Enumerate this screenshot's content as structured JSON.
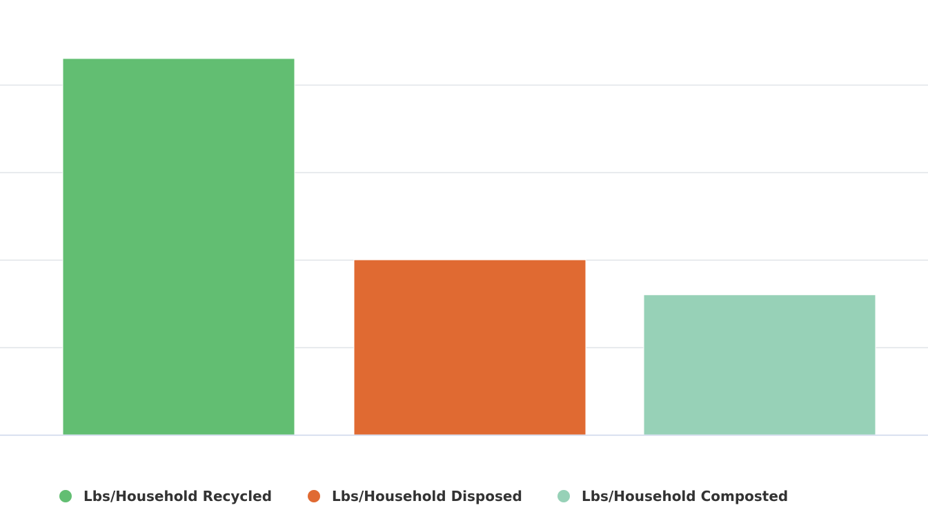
{
  "chart_data": {
    "type": "bar",
    "title": "",
    "xlabel": "",
    "ylabel": "",
    "ylim": [
      0,
      4.3
    ],
    "yticks": [
      0,
      1,
      2,
      3,
      4
    ],
    "grid": true,
    "legend_position": "bottom",
    "series": [
      {
        "name": "Lbs/Household Recycled",
        "value": 4.3,
        "color": "#62be72"
      },
      {
        "name": "Lbs/Household Disposed",
        "value": 2.0,
        "color": "#e06a32"
      },
      {
        "name": "Lbs/Household Composted",
        "value": 1.6,
        "color": "#97d1b7"
      }
    ],
    "gridline_color": "#e0e4e8",
    "axis_color": "#ccd6eb"
  }
}
